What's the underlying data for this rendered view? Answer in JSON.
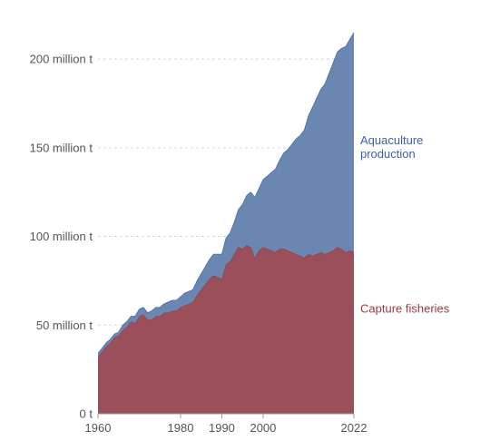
{
  "chart_data": {
    "type": "area",
    "stacked": true,
    "title": "",
    "xlabel": "",
    "ylabel": "",
    "xlim": [
      1960,
      2022
    ],
    "ylim": [
      0,
      220
    ],
    "x_ticks": [
      1960,
      1980,
      1990,
      2000,
      2022
    ],
    "x_tick_labels": [
      "1960",
      "1980",
      "1990",
      "2000",
      "2022"
    ],
    "y_ticks": [
      0,
      50,
      100,
      150,
      200
    ],
    "y_tick_labels": [
      "0 t",
      "50 million t",
      "100 million t",
      "150 million t",
      "200 million t"
    ],
    "grid": "horizontal dashed",
    "legend": "inline labels right of series",
    "x": [
      1960,
      1961,
      1962,
      1963,
      1964,
      1965,
      1966,
      1967,
      1968,
      1969,
      1970,
      1971,
      1972,
      1973,
      1974,
      1975,
      1976,
      1977,
      1978,
      1979,
      1980,
      1981,
      1982,
      1983,
      1984,
      1985,
      1986,
      1987,
      1988,
      1989,
      1990,
      1991,
      1992,
      1993,
      1994,
      1995,
      1996,
      1997,
      1998,
      1999,
      2000,
      2001,
      2002,
      2003,
      2004,
      2005,
      2006,
      2007,
      2008,
      2009,
      2010,
      2011,
      2012,
      2013,
      2014,
      2015,
      2016,
      2017,
      2018,
      2019,
      2020,
      2021,
      2022
    ],
    "series": [
      {
        "name": "Capture fisheries",
        "color": "#9a4f5a",
        "label_color": "#9b3a46",
        "values": [
          32,
          35,
          38,
          40,
          43,
          44,
          47,
          49,
          52,
          51,
          55,
          56,
          53,
          53,
          55,
          55,
          57,
          57,
          58,
          58,
          60,
          61,
          62,
          63,
          67,
          70,
          73,
          76,
          78,
          77,
          76,
          84,
          86,
          90,
          94,
          93,
          95,
          94,
          88,
          92,
          94,
          93,
          92,
          91,
          93,
          93,
          92,
          91,
          90,
          89,
          88,
          90,
          89,
          90,
          91,
          90,
          91,
          92,
          94,
          93,
          91,
          92,
          91
        ]
      },
      {
        "name": "Aquaculture production",
        "color": "#6a87b2",
        "label_color": "#3c63a4",
        "values": [
          2,
          2,
          2,
          2,
          2,
          2,
          3,
          3,
          3,
          4,
          4,
          4,
          4,
          5,
          5,
          5,
          5,
          6,
          6,
          6,
          6,
          7,
          7,
          7,
          8,
          9,
          10,
          11,
          12,
          13,
          14,
          15,
          16,
          18,
          21,
          25,
          28,
          31,
          34,
          35,
          38,
          41,
          44,
          47,
          50,
          54,
          57,
          61,
          65,
          68,
          72,
          78,
          84,
          88,
          92,
          96,
          101,
          106,
          110,
          113,
          116,
          119,
          124
        ]
      }
    ]
  }
}
